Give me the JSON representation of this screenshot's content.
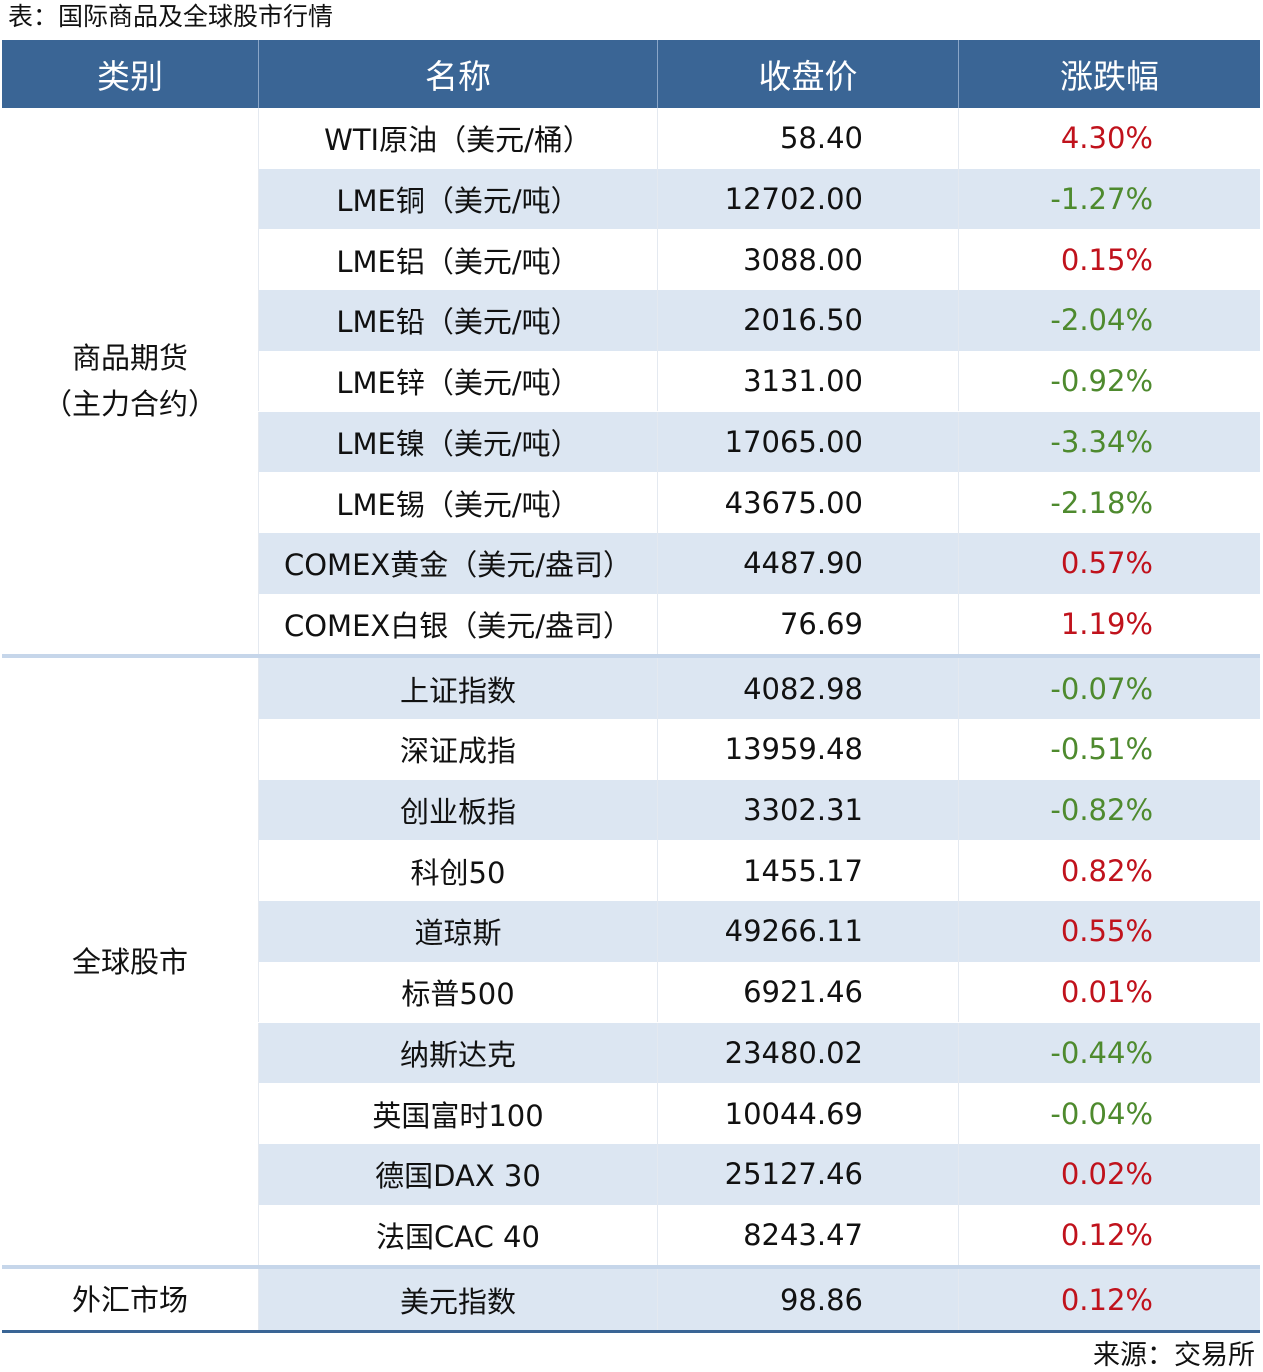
{
  "title": "表：国际商品及全球股市行情",
  "table": {
    "header": [
      "类别",
      "名称",
      "收盘价",
      "涨跌幅"
    ],
    "colors": {
      "header": "#3a6595",
      "stripe": "#dce6f2",
      "separator": "#c6d6ea",
      "rise": "#c0121c",
      "fall": "#4e8a2e"
    },
    "groups": [
      {
        "category": "商品期货\n（主力合约）",
        "rows": [
          [
            "WTI原油（美元/桶）",
            "58.40",
            "4.30%"
          ],
          [
            "LME铜（美元/吨）",
            "12702.00",
            "-1.27%"
          ],
          [
            "LME铝（美元/吨）",
            "3088.00",
            "0.15%"
          ],
          [
            "LME铅（美元/吨）",
            "2016.50",
            "-2.04%"
          ],
          [
            "LME锌（美元/吨）",
            "3131.00",
            "-0.92%"
          ],
          [
            "LME镍（美元/吨）",
            "17065.00",
            "-3.34%"
          ],
          [
            "LME锡（美元/吨）",
            "43675.00",
            "-2.18%"
          ],
          [
            "COMEX黄金（美元/盎司）",
            "4487.90",
            "0.57%"
          ],
          [
            "COMEX白银（美元/盎司）",
            "76.69",
            "1.19%"
          ]
        ]
      },
      {
        "category": "全球股市",
        "rows": [
          [
            "上证指数",
            "4082.98",
            "-0.07%"
          ],
          [
            "深证成指",
            "13959.48",
            "-0.51%"
          ],
          [
            "创业板指",
            "3302.31",
            "-0.82%"
          ],
          [
            "科创50",
            "1455.17",
            "0.82%"
          ],
          [
            "道琼斯",
            "49266.11",
            "0.55%"
          ],
          [
            "标普500",
            "6921.46",
            "0.01%"
          ],
          [
            "纳斯达克",
            "23480.02",
            "-0.44%"
          ],
          [
            "英国富时100",
            "10044.69",
            "-0.04%"
          ],
          [
            "德国DAX 30",
            "25127.46",
            "0.02%"
          ],
          [
            "法国CAC 40",
            "8243.47",
            "0.12%"
          ]
        ]
      },
      {
        "category": "外汇市场",
        "rows": [
          [
            "美元指数",
            "98.86",
            "0.12%"
          ]
        ]
      }
    ]
  },
  "source": "来源：交易所"
}
